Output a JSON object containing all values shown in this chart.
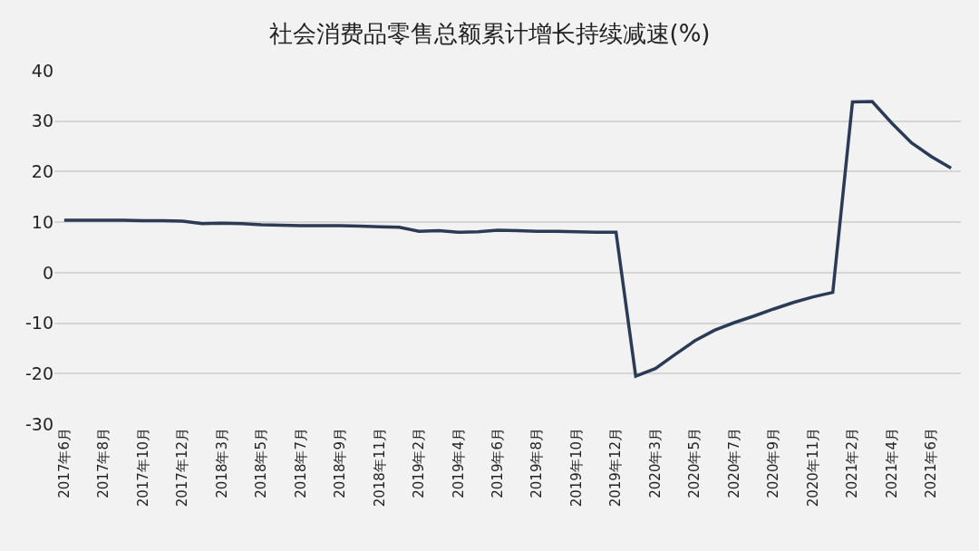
{
  "chart_data": {
    "type": "line",
    "title": "社会消费品零售总额累计增长持续减速(%)",
    "categories": [
      "2017年6月",
      null,
      "2017年8月",
      null,
      "2017年10月",
      null,
      "2017年12月",
      null,
      "2018年3月",
      null,
      "2018年5月",
      null,
      "2018年7月",
      null,
      "2018年9月",
      null,
      "2018年11月",
      null,
      "2019年2月",
      null,
      "2019年4月",
      null,
      "2019年6月",
      null,
      "2019年8月",
      null,
      "2019年10月",
      null,
      "2019年12月",
      null,
      "2020年3月",
      null,
      "2020年5月",
      null,
      "2020年7月",
      null,
      "2020年9月",
      null,
      "2020年11月",
      null,
      "2021年2月",
      null,
      "2021年4月",
      null,
      "2021年6月",
      null
    ],
    "series": [
      {
        "color": "#2b3a55",
        "values": [
          10.4,
          10.4,
          10.4,
          10.4,
          10.3,
          10.3,
          10.2,
          9.7,
          9.8,
          9.7,
          9.5,
          9.4,
          9.3,
          9.3,
          9.3,
          9.2,
          9.1,
          9.0,
          8.2,
          8.3,
          8.0,
          8.1,
          8.4,
          8.3,
          8.2,
          8.2,
          8.1,
          8.0,
          8.0,
          -20.5,
          -19.0,
          -16.2,
          -13.5,
          -11.4,
          -9.9,
          -8.6,
          -7.2,
          -5.9,
          -4.8,
          -3.9,
          33.8,
          33.9,
          29.6,
          25.7,
          23.0,
          20.7
        ]
      }
    ],
    "ylim": [
      -30,
      40
    ],
    "yticks": [
      -30,
      -20,
      -10,
      0,
      10,
      20,
      30,
      40
    ],
    "grid": "y",
    "marker": "none",
    "line_style": "solid"
  }
}
